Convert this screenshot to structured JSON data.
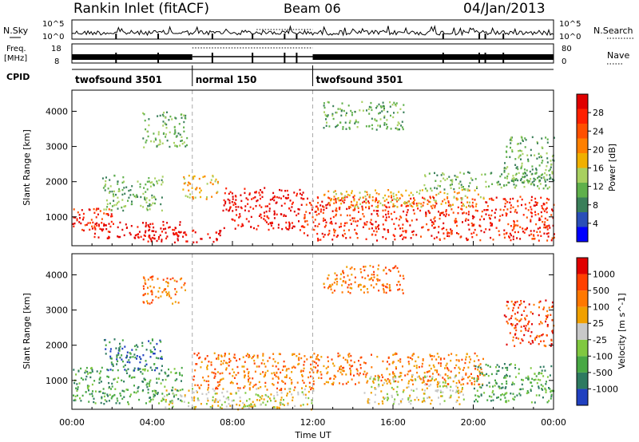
{
  "header": {
    "title": "Rankin Inlet (fitACF)",
    "beam": "Beam 06",
    "date": "04/Jan/2013"
  },
  "summary_panels": {
    "nsky": {
      "label": "N.Sky",
      "y_ticks": [
        "10^5",
        "10^0"
      ],
      "right_label": "N.Search",
      "right_ticks": [
        "10^5",
        "10^0"
      ]
    },
    "freq": {
      "label_line1": "Freq.",
      "label_line2": "[MHz]",
      "y_ticks": [
        "18",
        "8"
      ],
      "right_label": "Nave",
      "right_ticks": [
        "80",
        "0"
      ]
    },
    "cpid": {
      "label": "CPID",
      "segments": [
        {
          "name": "twofsound 3501",
          "start_hour": 0,
          "end_hour": 6
        },
        {
          "name": "normal 150",
          "start_hour": 6,
          "end_hour": 12
        },
        {
          "name": "twofsound 3501",
          "start_hour": 12,
          "end_hour": 24
        }
      ]
    }
  },
  "chart_data": [
    {
      "type": "heatmap",
      "name": "power",
      "xlabel": "Time UT",
      "ylabel": "Slant Range [km]",
      "xlim": [
        0,
        24
      ],
      "ylim": [
        180,
        4600
      ],
      "x_ticks": [
        "00:00",
        "04:00",
        "08:00",
        "12:00",
        "16:00",
        "20:00",
        "00:00"
      ],
      "y_ticks": [
        1000,
        2000,
        3000,
        4000
      ],
      "colorbar": {
        "label": "Power [dB]",
        "ticks": [
          "28",
          "24",
          "20",
          "16",
          "12",
          "8",
          "4"
        ],
        "colors": [
          "#0000ff",
          "#2a4fb8",
          "#3a7f5a",
          "#5fb04b",
          "#a8d060",
          "#f0b000",
          "#ff8000",
          "#ff5000",
          "#ff2000",
          "#e00000"
        ]
      },
      "regions": [
        {
          "t0": 0.0,
          "t1": 2.0,
          "r0": 600,
          "r1": 1300,
          "level": 8
        },
        {
          "t0": 1.0,
          "t1": 5.5,
          "r0": 400,
          "r1": 900,
          "level": 9
        },
        {
          "t0": 3.5,
          "t1": 7.5,
          "r0": 300,
          "r1": 650,
          "level": 9
        },
        {
          "t0": 1.5,
          "t1": 4.5,
          "r0": 1200,
          "r1": 2200,
          "level": 3
        },
        {
          "t0": 5.5,
          "t1": 7.3,
          "r0": 1500,
          "r1": 2200,
          "level": 5
        },
        {
          "t0": 7.5,
          "t1": 11.5,
          "r0": 650,
          "r1": 1850,
          "level": 9
        },
        {
          "t0": 11.5,
          "t1": 24.0,
          "r0": 350,
          "r1": 1600,
          "level": 8
        },
        {
          "t0": 12.5,
          "t1": 20.5,
          "r0": 1300,
          "r1": 1800,
          "level": 5
        },
        {
          "t0": 3.5,
          "t1": 5.7,
          "r0": 3000,
          "r1": 4000,
          "level": 3
        },
        {
          "t0": 12.5,
          "t1": 16.5,
          "r0": 3500,
          "r1": 4300,
          "level": 3
        },
        {
          "t0": 21.5,
          "t1": 24.0,
          "r0": 2000,
          "r1": 3300,
          "level": 3
        },
        {
          "t0": 17.5,
          "t1": 24.0,
          "r0": 1800,
          "r1": 2300,
          "level": 3
        }
      ]
    },
    {
      "type": "heatmap",
      "name": "velocity",
      "xlabel": "Time UT",
      "ylabel": "Slant Range [km]",
      "xlim": [
        0,
        24
      ],
      "ylim": [
        180,
        4600
      ],
      "x_ticks": [
        "00:00",
        "04:00",
        "08:00",
        "12:00",
        "16:00",
        "20:00",
        "00:00"
      ],
      "y_ticks": [
        1000,
        2000,
        3000,
        4000
      ],
      "colorbar": {
        "label": "Velocity [m s^-1]",
        "ticks": [
          "1000",
          "500",
          "100",
          "25",
          "-25",
          "-100",
          "-500",
          "-1000"
        ],
        "colors": [
          "#2040c0",
          "#2e7a60",
          "#48a844",
          "#80c840",
          "#c8c8c8",
          "#f0a000",
          "#ff7800",
          "#ff4000",
          "#e00000"
        ]
      },
      "regions": [
        {
          "t0": 0.0,
          "t1": 5.5,
          "r0": 350,
          "r1": 1400,
          "level": 2
        },
        {
          "t0": 1.5,
          "t1": 4.5,
          "r0": 1300,
          "r1": 2200,
          "level": 1
        },
        {
          "t0": 4.5,
          "t1": 12.0,
          "r0": 200,
          "r1": 800,
          "level": 4
        },
        {
          "t0": 6.0,
          "t1": 12.0,
          "r0": 750,
          "r1": 1800,
          "level": 6
        },
        {
          "t0": 12.0,
          "t1": 20.5,
          "r0": 900,
          "r1": 1800,
          "level": 6
        },
        {
          "t0": 14.5,
          "t1": 19.5,
          "r0": 350,
          "r1": 1200,
          "level": 4
        },
        {
          "t0": 20.0,
          "t1": 24.0,
          "r0": 400,
          "r1": 1500,
          "level": 2
        },
        {
          "t0": 12.5,
          "t1": 16.5,
          "r0": 3500,
          "r1": 4300,
          "level": 6
        },
        {
          "t0": 21.5,
          "t1": 24.0,
          "r0": 2000,
          "r1": 3300,
          "level": 7
        },
        {
          "t0": 3.5,
          "t1": 5.7,
          "r0": 3200,
          "r1": 4000,
          "level": 6
        }
      ]
    }
  ]
}
